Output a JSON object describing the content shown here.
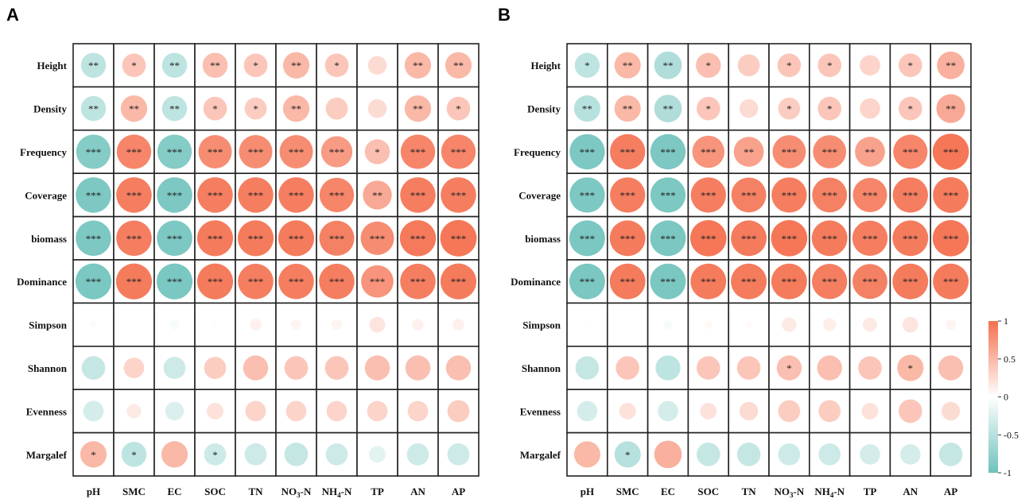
{
  "chart_data": [
    {
      "type": "heatmap",
      "panel_label": "A",
      "rows": [
        "Height",
        "Density",
        "Frequency",
        "Coverage",
        "biomass",
        "Dominance",
        "Simpson",
        "Shannon",
        "Evenness",
        "Margalef"
      ],
      "columns": [
        "pH",
        "SMC",
        "EC",
        "SOC",
        "TN",
        "NO3-N",
        "NH4-N",
        "TP",
        "AN",
        "AP"
      ],
      "values": [
        [
          -0.45,
          0.4,
          -0.45,
          0.45,
          0.4,
          0.5,
          0.4,
          0.25,
          0.5,
          0.5
        ],
        [
          -0.45,
          0.5,
          -0.45,
          0.4,
          0.35,
          0.5,
          0.35,
          0.25,
          0.5,
          0.4
        ],
        [
          -0.85,
          0.85,
          -0.85,
          0.8,
          0.8,
          0.8,
          0.7,
          0.45,
          0.85,
          0.85
        ],
        [
          -0.9,
          0.9,
          -0.9,
          0.9,
          0.9,
          0.9,
          0.85,
          0.6,
          0.9,
          0.9
        ],
        [
          -0.9,
          0.9,
          -0.9,
          0.92,
          0.92,
          0.92,
          0.88,
          0.8,
          0.93,
          0.95
        ],
        [
          -0.92,
          0.92,
          -0.92,
          0.92,
          0.9,
          0.9,
          0.9,
          0.75,
          0.9,
          0.92
        ],
        [
          -0.04,
          0.0,
          -0.06,
          0.02,
          0.1,
          0.08,
          0.08,
          0.18,
          0.1,
          0.1
        ],
        [
          -0.4,
          0.3,
          -0.35,
          0.35,
          0.45,
          0.4,
          0.4,
          0.45,
          0.45,
          0.45
        ],
        [
          -0.3,
          0.15,
          -0.25,
          0.2,
          0.3,
          0.3,
          0.3,
          0.3,
          0.3,
          0.35
        ],
        [
          0.5,
          -0.45,
          0.5,
          -0.35,
          -0.35,
          -0.4,
          -0.35,
          -0.2,
          -0.35,
          -0.35
        ]
      ],
      "significance": [
        [
          "**",
          "*",
          "**",
          "**",
          "*",
          "**",
          "*",
          "",
          "**",
          "**"
        ],
        [
          "**",
          "**",
          "**",
          "*",
          "*",
          "**",
          "",
          "",
          "**",
          "*"
        ],
        [
          "***",
          "***",
          "***",
          "***",
          "***",
          "***",
          "***",
          "*",
          "***",
          "***"
        ],
        [
          "***",
          "***",
          "***",
          "***",
          "***",
          "***",
          "***",
          "**",
          "***",
          "***"
        ],
        [
          "***",
          "***",
          "***",
          "***",
          "***",
          "***",
          "***",
          "***",
          "***",
          "***"
        ],
        [
          "***",
          "***",
          "***",
          "***",
          "***",
          "***",
          "***",
          "***",
          "***",
          "***"
        ],
        [
          "",
          "",
          "",
          "",
          "",
          "",
          "",
          "",
          "",
          ""
        ],
        [
          "",
          "",
          "",
          "",
          "",
          "",
          "",
          "",
          "",
          ""
        ],
        [
          "",
          "",
          "",
          "",
          "",
          "",
          "",
          "",
          "",
          ""
        ],
        [
          "*",
          "*",
          "",
          "*",
          "",
          "",
          "",
          "",
          "",
          ""
        ]
      ]
    },
    {
      "type": "heatmap",
      "panel_label": "B",
      "rows": [
        "Height",
        "Density",
        "Frequency",
        "Coverage",
        "biomass",
        "Dominance",
        "Simpson",
        "Shannon",
        "Evenness",
        "Margalef"
      ],
      "columns": [
        "pH",
        "SMC",
        "EC",
        "SOC",
        "TN",
        "NO3-N",
        "NH4-N",
        "TP",
        "AN",
        "AP"
      ],
      "values": [
        [
          -0.45,
          0.5,
          -0.55,
          0.45,
          0.35,
          0.4,
          0.4,
          0.3,
          0.4,
          0.55
        ],
        [
          -0.5,
          0.5,
          -0.55,
          0.4,
          0.25,
          0.35,
          0.4,
          0.3,
          0.4,
          0.6
        ],
        [
          -0.9,
          0.9,
          -0.9,
          0.75,
          0.65,
          0.8,
          0.8,
          0.65,
          0.85,
          0.95
        ],
        [
          -0.9,
          0.9,
          -0.9,
          0.9,
          0.88,
          0.9,
          0.88,
          0.85,
          0.9,
          0.92
        ],
        [
          -0.92,
          0.92,
          -0.92,
          0.95,
          0.92,
          0.95,
          0.92,
          0.9,
          0.92,
          0.95
        ],
        [
          -0.92,
          0.92,
          -0.92,
          0.92,
          0.92,
          0.92,
          0.9,
          0.88,
          0.92,
          0.92
        ],
        [
          -0.02,
          0.0,
          -0.06,
          0.05,
          0.04,
          0.15,
          0.12,
          0.15,
          0.18,
          0.08
        ],
        [
          -0.4,
          0.4,
          -0.45,
          0.4,
          0.4,
          0.45,
          0.45,
          0.4,
          0.5,
          0.45
        ],
        [
          -0.3,
          0.2,
          -0.3,
          0.2,
          0.25,
          0.35,
          0.35,
          0.2,
          0.4,
          0.25
        ],
        [
          0.5,
          -0.5,
          0.55,
          -0.4,
          -0.4,
          -0.35,
          -0.35,
          -0.3,
          -0.3,
          -0.4
        ]
      ],
      "significance": [
        [
          "*",
          "**",
          "**",
          "*",
          "",
          "*",
          "*",
          "",
          "*",
          "**"
        ],
        [
          "**",
          "**",
          "**",
          "*",
          "",
          "*",
          "*",
          "",
          "*",
          "**"
        ],
        [
          "***",
          "***",
          "***",
          "***",
          "**",
          "***",
          "***",
          "**",
          "***",
          "***"
        ],
        [
          "***",
          "***",
          "***",
          "***",
          "***",
          "***",
          "***",
          "***",
          "***",
          "***"
        ],
        [
          "***",
          "***",
          "***",
          "***",
          "***",
          "***",
          "***",
          "***",
          "***",
          "***"
        ],
        [
          "***",
          "***",
          "***",
          "***",
          "***",
          "***",
          "***",
          "***",
          "***",
          "***"
        ],
        [
          "",
          "",
          "",
          "",
          "",
          "",
          "",
          "",
          "",
          ""
        ],
        [
          "",
          "",
          "",
          "",
          "",
          "*",
          "",
          "",
          "*",
          ""
        ],
        [
          "",
          "",
          "",
          "",
          "",
          "",
          "",
          "",
          "",
          ""
        ],
        [
          "",
          "*",
          "",
          "",
          "",
          "",
          "",
          "",
          "",
          ""
        ]
      ]
    }
  ],
  "colorbar": {
    "ticks": [
      "1",
      "0.5",
      "0",
      "-0.5",
      "-1"
    ],
    "range": [
      -1,
      1
    ]
  },
  "colors": {
    "positive": "#f4704f",
    "neutral": "#ffffff",
    "negative": "#6fc2bc"
  }
}
